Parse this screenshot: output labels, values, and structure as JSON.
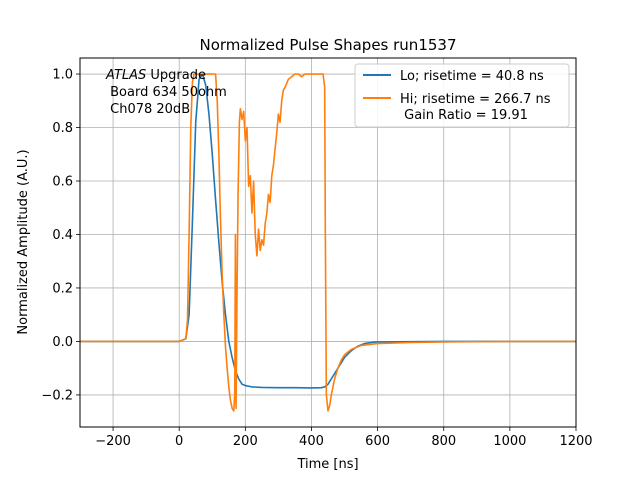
{
  "chart_data": {
    "type": "line",
    "title": "Normalized Pulse Shapes run1537",
    "xlabel": "Time [ns]",
    "ylabel": "Normalized Amplitude (A.U.)",
    "xlim": [
      -300,
      1200
    ],
    "ylim": [
      -0.32,
      1.06
    ],
    "xticks": [
      -200,
      0,
      200,
      400,
      600,
      800,
      1000,
      1200
    ],
    "xtick_labels": [
      "−200",
      "0",
      "200",
      "400",
      "600",
      "800",
      "1000",
      "1200"
    ],
    "yticks": [
      -0.2,
      0.0,
      0.2,
      0.4,
      0.6,
      0.8,
      1.0
    ],
    "ytick_labels": [
      "−0.2",
      "0.0",
      "0.2",
      "0.4",
      "0.6",
      "0.8",
      "1.0"
    ],
    "grid": true,
    "legend_position": "top-right",
    "annotation": {
      "italic": "ATLAS",
      "line1_rest": " Upgrade",
      "line2": " Board 634 50ohm",
      "line3": " Ch078 20dB"
    },
    "series": [
      {
        "name": "Lo; risetime = 40.8 ns",
        "color": "#1f77b4",
        "x": [
          -300,
          0,
          20,
          30,
          40,
          50,
          60,
          70,
          80,
          90,
          100,
          110,
          120,
          130,
          140,
          150,
          160,
          170,
          180,
          190,
          200,
          220,
          250,
          300,
          350,
          400,
          430,
          440,
          450,
          460,
          470,
          480,
          490,
          500,
          520,
          540,
          560,
          580,
          600,
          700,
          800,
          1000,
          1200
        ],
        "y": [
          0.0,
          0.0,
          0.01,
          0.1,
          0.45,
          0.82,
          0.98,
          1.0,
          0.96,
          0.85,
          0.7,
          0.53,
          0.37,
          0.22,
          0.1,
          0.0,
          -0.06,
          -0.11,
          -0.14,
          -0.16,
          -0.165,
          -0.17,
          -0.172,
          -0.173,
          -0.173,
          -0.174,
          -0.173,
          -0.17,
          -0.16,
          -0.14,
          -0.12,
          -0.1,
          -0.08,
          -0.06,
          -0.035,
          -0.018,
          -0.008,
          -0.004,
          -0.002,
          -0.001,
          0.0,
          0.0,
          0.0
        ]
      },
      {
        "name": "Hi; risetime = 266.7 ns\n Gain Ratio = 19.91",
        "color": "#ff7f0e",
        "x": [
          -300,
          0,
          20,
          25,
          30,
          35,
          40,
          45,
          50,
          60,
          70,
          80,
          90,
          100,
          110,
          115,
          120,
          125,
          130,
          135,
          140,
          145,
          150,
          155,
          160,
          165,
          168,
          170,
          172,
          175,
          178,
          180,
          182,
          185,
          190,
          195,
          200,
          205,
          210,
          215,
          220,
          225,
          230,
          235,
          240,
          245,
          250,
          255,
          260,
          265,
          270,
          275,
          280,
          285,
          290,
          295,
          300,
          305,
          310,
          315,
          320,
          330,
          340,
          350,
          360,
          370,
          380,
          390,
          400,
          410,
          420,
          430,
          435,
          440,
          442,
          445,
          450,
          455,
          460,
          470,
          480,
          490,
          500,
          520,
          550,
          600,
          700,
          800,
          1000,
          1200
        ],
        "y": [
          0.0,
          0.0,
          0.01,
          0.08,
          0.4,
          0.8,
          0.97,
          1.0,
          1.0,
          1.0,
          1.0,
          1.0,
          1.0,
          1.0,
          1.0,
          0.9,
          0.7,
          0.45,
          0.25,
          0.1,
          -0.02,
          -0.1,
          -0.17,
          -0.22,
          -0.25,
          -0.26,
          -0.2,
          0.4,
          -0.25,
          0.2,
          0.55,
          0.68,
          0.82,
          0.87,
          0.83,
          0.86,
          0.75,
          0.8,
          0.58,
          0.62,
          0.48,
          0.6,
          0.4,
          0.32,
          0.42,
          0.34,
          0.38,
          0.36,
          0.44,
          0.48,
          0.55,
          0.52,
          0.62,
          0.66,
          0.72,
          0.78,
          0.85,
          0.82,
          0.9,
          0.94,
          0.95,
          0.98,
          0.99,
          1.0,
          1.0,
          0.99,
          1.0,
          1.0,
          1.0,
          1.0,
          1.0,
          1.0,
          1.0,
          0.95,
          0.4,
          -0.2,
          -0.26,
          -0.24,
          -0.2,
          -0.14,
          -0.1,
          -0.07,
          -0.05,
          -0.03,
          -0.015,
          -0.008,
          -0.004,
          -0.002,
          0.0,
          0.0
        ]
      }
    ]
  }
}
